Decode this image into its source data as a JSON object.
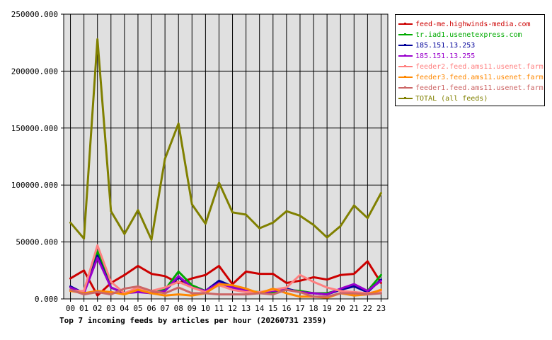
{
  "chart_data": {
    "type": "line",
    "title": "Top 7 incoming feeds by articles per hour (20260731 2359)",
    "xlabel": "",
    "ylabel": "",
    "ylim": [
      0,
      250000
    ],
    "yticks": [
      "0.000",
      "50000.000",
      "100000.000",
      "150000.000",
      "200000.000",
      "250000.000"
    ],
    "categories": [
      "00",
      "01",
      "02",
      "03",
      "04",
      "05",
      "06",
      "07",
      "08",
      "09",
      "10",
      "11",
      "12",
      "13",
      "14",
      "15",
      "16",
      "17",
      "18",
      "19",
      "20",
      "21",
      "22",
      "23"
    ],
    "grid": true,
    "legend_placement": "right",
    "background": "#e0e0e0",
    "series": [
      {
        "name": "feed-me.highwinds-media.com",
        "color": "#cc0000",
        "values": [
          18000,
          25000,
          3000,
          14000,
          21000,
          29000,
          22000,
          20000,
          14000,
          18000,
          21000,
          29000,
          13000,
          24000,
          22000,
          22000,
          14000,
          16000,
          19000,
          17000,
          21000,
          22000,
          33000,
          14000
        ]
      },
      {
        "name": "tr.iad1.usenetexpress.com",
        "color": "#00aa00",
        "values": [
          10000,
          5000,
          42000,
          10000,
          5000,
          7000,
          5000,
          8000,
          24000,
          12000,
          7000,
          14000,
          10000,
          7000,
          6000,
          6000,
          8000,
          7000,
          5000,
          5000,
          8000,
          12000,
          7000,
          21000
        ]
      },
      {
        "name": "185.151.13.253",
        "color": "#000099",
        "values": [
          11000,
          5000,
          38000,
          10000,
          5000,
          7000,
          5000,
          7000,
          19000,
          10000,
          7000,
          16000,
          11000,
          7000,
          5000,
          7000,
          9000,
          6000,
          5000,
          4000,
          8000,
          11000,
          6000,
          17000
        ]
      },
      {
        "name": "185.151.13.255",
        "color": "#9900cc",
        "values": [
          10000,
          5000,
          36000,
          10000,
          5000,
          6000,
          5000,
          7000,
          20000,
          10000,
          7000,
          14000,
          10000,
          7000,
          5000,
          7000,
          8000,
          6000,
          5000,
          4000,
          9000,
          13000,
          7000,
          16000
        ]
      },
      {
        "name": "feeder2.feed.ams11.usenet.farm",
        "color": "#ff8080",
        "values": [
          7000,
          7000,
          47000,
          15000,
          5000,
          10000,
          7000,
          10000,
          15000,
          10000,
          6000,
          12000,
          8000,
          6000,
          6000,
          8000,
          10000,
          21000,
          15000,
          10000,
          7000,
          6000,
          5000,
          7000
        ]
      },
      {
        "name": "feeder3.feed.ams11.usenet.farm",
        "color": "#ff8800",
        "values": [
          7000,
          5000,
          7000,
          6000,
          4000,
          8000,
          5000,
          3000,
          4000,
          3000,
          5000,
          13000,
          12000,
          9000,
          5000,
          9000,
          5000,
          2000,
          2000,
          1000,
          5000,
          3000,
          4000,
          8000
        ]
      },
      {
        "name": "feeder1.feed.ams11.usenet.farm",
        "color": "#cc6666",
        "values": [
          8000,
          4000,
          6000,
          4000,
          9000,
          11000,
          7000,
          5000,
          10000,
          5000,
          5000,
          4000,
          4000,
          4000,
          5000,
          4000,
          8000,
          6000,
          2000,
          2000,
          5000,
          5000,
          4000,
          5000
        ]
      },
      {
        "name": "TOTAL (all feeds)",
        "color": "#808000",
        "values": [
          67000,
          53000,
          228000,
          77000,
          57000,
          78000,
          52000,
          123000,
          154000,
          83000,
          66000,
          102000,
          76000,
          74000,
          62000,
          67000,
          77000,
          73000,
          65000,
          54000,
          64000,
          82000,
          71000,
          93000
        ]
      }
    ]
  }
}
